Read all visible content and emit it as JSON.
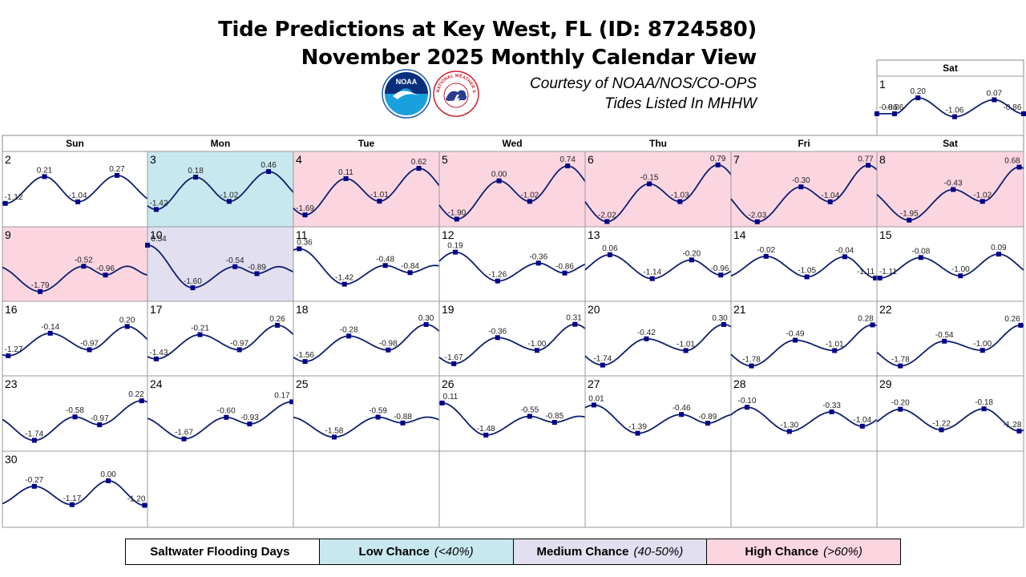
{
  "header": {
    "title_line1": "Tide Predictions at Key West, FL (ID: 8724580)",
    "title_line2": "November 2025 Monthly Calendar View",
    "courtesy": "Courtesy of NOAA/NOS/CO-OPS",
    "datum_note": "Tides Listed In MHHW",
    "noaa_logo_text": "NOAA",
    "nws_logo_text": "NATIONAL WEATHER SERVICE"
  },
  "colors": {
    "low": "#c8e8ef",
    "medium": "#e2dff0",
    "high": "#fbd6e1",
    "curve": "#0d1f6e",
    "marker": "#00008b",
    "grid": "#9a9a9a"
  },
  "weekdays": [
    "Sun",
    "Mon",
    "Tue",
    "Wed",
    "Thu",
    "Fri",
    "Sat"
  ],
  "legend": {
    "label": "Saltwater Flooding Days",
    "low_label": "Low Chance",
    "low_range": "(<40%)",
    "medium_label": "Medium Chance",
    "medium_range": "(40-50%)",
    "high_label": "High Chance",
    "high_range": "(>60%)"
  },
  "chart_data": {
    "type": "line",
    "month": "November 2025",
    "units": "ft MHHW",
    "ylim": [
      -2.2,
      0.9
    ],
    "days": [
      {
        "day": 1,
        "dow": "Sat",
        "flood": "none",
        "tides": [
          {
            "t": 0.0,
            "v": -0.86
          },
          {
            "t": 0.12,
            "v": -0.86
          },
          {
            "t": 0.28,
            "v": 0.2
          },
          {
            "t": 0.53,
            "v": -1.06
          },
          {
            "t": 0.8,
            "v": 0.07
          },
          {
            "t": 1.0,
            "v": -0.86
          }
        ]
      },
      {
        "day": 2,
        "dow": "Sun",
        "flood": "none",
        "tides": [
          {
            "t": 0.02,
            "v": -1.12
          },
          {
            "t": 0.29,
            "v": 0.21
          },
          {
            "t": 0.52,
            "v": -1.04
          },
          {
            "t": 0.79,
            "v": 0.27
          }
        ]
      },
      {
        "day": 3,
        "dow": "Mon",
        "flood": "low",
        "tides": [
          {
            "t": 0.06,
            "v": -1.42
          },
          {
            "t": 0.33,
            "v": 0.18
          },
          {
            "t": 0.56,
            "v": -1.02
          },
          {
            "t": 0.83,
            "v": 0.46
          }
        ]
      },
      {
        "day": 4,
        "dow": "Tue",
        "flood": "high",
        "tides": [
          {
            "t": 0.08,
            "v": -1.69
          },
          {
            "t": 0.36,
            "v": 0.11
          },
          {
            "t": 0.59,
            "v": -1.01
          },
          {
            "t": 0.86,
            "v": 0.62
          }
        ]
      },
      {
        "day": 5,
        "dow": "Wed",
        "flood": "high",
        "tides": [
          {
            "t": 0.12,
            "v": -1.9
          },
          {
            "t": 0.41,
            "v": -0.0
          },
          {
            "t": 0.62,
            "v": -1.02
          },
          {
            "t": 0.88,
            "v": 0.74
          }
        ]
      },
      {
        "day": 6,
        "dow": "Thu",
        "flood": "high",
        "tides": [
          {
            "t": 0.15,
            "v": -2.02
          },
          {
            "t": 0.44,
            "v": -0.15
          },
          {
            "t": 0.65,
            "v": -1.03
          },
          {
            "t": 0.91,
            "v": 0.79
          }
        ]
      },
      {
        "day": 7,
        "dow": "Fri",
        "flood": "high",
        "tides": [
          {
            "t": 0.18,
            "v": -2.03
          },
          {
            "t": 0.48,
            "v": -0.3
          },
          {
            "t": 0.68,
            "v": -1.04
          },
          {
            "t": 0.94,
            "v": 0.77
          }
        ]
      },
      {
        "day": 8,
        "dow": "Sat",
        "flood": "high",
        "tides": [
          {
            "t": 0.22,
            "v": -1.95
          },
          {
            "t": 0.52,
            "v": -0.43
          },
          {
            "t": 0.72,
            "v": -1.02
          },
          {
            "t": 0.97,
            "v": 0.68
          }
        ]
      },
      {
        "day": 9,
        "dow": "Sun",
        "flood": "high",
        "tides": [
          {
            "t": 0.26,
            "v": -1.79
          },
          {
            "t": 0.56,
            "v": -0.52
          },
          {
            "t": 0.71,
            "v": -0.96
          }
        ]
      },
      {
        "day": 10,
        "dow": "Mon",
        "flood": "medium",
        "tides": [
          {
            "t": 0.0,
            "v": 0.54
          },
          {
            "t": 0.31,
            "v": -1.6
          },
          {
            "t": 0.6,
            "v": -0.54
          },
          {
            "t": 0.75,
            "v": -0.89
          }
        ]
      },
      {
        "day": 11,
        "dow": "Tue",
        "flood": "none",
        "tides": [
          {
            "t": 0.04,
            "v": 0.36
          },
          {
            "t": 0.35,
            "v": -1.42
          },
          {
            "t": 0.63,
            "v": -0.48
          },
          {
            "t": 0.8,
            "v": -0.84
          }
        ]
      },
      {
        "day": 12,
        "dow": "Wed",
        "flood": "none",
        "tides": [
          {
            "t": 0.11,
            "v": 0.19
          },
          {
            "t": 0.4,
            "v": -1.26
          },
          {
            "t": 0.68,
            "v": -0.36
          },
          {
            "t": 0.86,
            "v": -0.86
          }
        ]
      },
      {
        "day": 13,
        "dow": "Thu",
        "flood": "none",
        "tides": [
          {
            "t": 0.17,
            "v": 0.06
          },
          {
            "t": 0.46,
            "v": -1.14
          },
          {
            "t": 0.73,
            "v": -0.2
          },
          {
            "t": 0.93,
            "v": -0.96
          }
        ]
      },
      {
        "day": 14,
        "dow": "Fri",
        "flood": "none",
        "tides": [
          {
            "t": 0.24,
            "v": -0.02
          },
          {
            "t": 0.52,
            "v": -1.05
          },
          {
            "t": 0.78,
            "v": -0.04
          },
          {
            "t": 0.99,
            "v": -1.11
          }
        ]
      },
      {
        "day": 15,
        "dow": "Sat",
        "flood": "none",
        "tides": [
          {
            "t": 0.02,
            "v": -1.11
          },
          {
            "t": 0.3,
            "v": -0.08
          },
          {
            "t": 0.57,
            "v": -1.0
          },
          {
            "t": 0.83,
            "v": 0.09
          }
        ]
      },
      {
        "day": 16,
        "dow": "Sun",
        "flood": "none",
        "tides": [
          {
            "t": 0.04,
            "v": -1.27
          },
          {
            "t": 0.33,
            "v": -0.14
          },
          {
            "t": 0.6,
            "v": -0.97
          },
          {
            "t": 0.86,
            "v": 0.2
          }
        ]
      },
      {
        "day": 17,
        "dow": "Mon",
        "flood": "none",
        "tides": [
          {
            "t": 0.06,
            "v": -1.43
          },
          {
            "t": 0.36,
            "v": -0.21
          },
          {
            "t": 0.63,
            "v": -0.97
          },
          {
            "t": 0.89,
            "v": 0.26
          }
        ]
      },
      {
        "day": 18,
        "dow": "Tue",
        "flood": "none",
        "tides": [
          {
            "t": 0.08,
            "v": -1.56
          },
          {
            "t": 0.38,
            "v": -0.28
          },
          {
            "t": 0.65,
            "v": -0.98
          },
          {
            "t": 0.91,
            "v": 0.3
          }
        ]
      },
      {
        "day": 19,
        "dow": "Wed",
        "flood": "none",
        "tides": [
          {
            "t": 0.1,
            "v": -1.67
          },
          {
            "t": 0.4,
            "v": -0.36
          },
          {
            "t": 0.67,
            "v": -1.0
          },
          {
            "t": 0.93,
            "v": 0.31
          }
        ]
      },
      {
        "day": 20,
        "dow": "Thu",
        "flood": "none",
        "tides": [
          {
            "t": 0.12,
            "v": -1.74
          },
          {
            "t": 0.42,
            "v": -0.42
          },
          {
            "t": 0.69,
            "v": -1.01
          },
          {
            "t": 0.95,
            "v": 0.3
          }
        ]
      },
      {
        "day": 21,
        "dow": "Fri",
        "flood": "none",
        "tides": [
          {
            "t": 0.14,
            "v": -1.78
          },
          {
            "t": 0.44,
            "v": -0.49
          },
          {
            "t": 0.71,
            "v": -1.01
          },
          {
            "t": 0.97,
            "v": 0.28
          }
        ]
      },
      {
        "day": 22,
        "dow": "Sat",
        "flood": "none",
        "tides": [
          {
            "t": 0.16,
            "v": -1.78
          },
          {
            "t": 0.46,
            "v": -0.54
          },
          {
            "t": 0.72,
            "v": -1.0
          },
          {
            "t": 0.98,
            "v": 0.26
          }
        ]
      },
      {
        "day": 23,
        "dow": "Sun",
        "flood": "none",
        "tides": [
          {
            "t": 0.22,
            "v": -1.74
          },
          {
            "t": 0.5,
            "v": -0.58
          },
          {
            "t": 0.67,
            "v": -0.97
          },
          {
            "t": 0.96,
            "v": 0.22
          }
        ]
      },
      {
        "day": 24,
        "dow": "Mon",
        "flood": "none",
        "tides": [
          {
            "t": 0.25,
            "v": -1.67
          },
          {
            "t": 0.54,
            "v": -0.6
          },
          {
            "t": 0.7,
            "v": -0.93
          },
          {
            "t": 0.99,
            "v": 0.17
          }
        ]
      },
      {
        "day": 25,
        "dow": "Tue",
        "flood": "none",
        "tides": [
          {
            "t": 0.28,
            "v": -1.58
          },
          {
            "t": 0.58,
            "v": -0.59
          },
          {
            "t": 0.75,
            "v": -0.88
          }
        ]
      },
      {
        "day": 26,
        "dow": "Wed",
        "flood": "none",
        "tides": [
          {
            "t": 0.02,
            "v": 0.11
          },
          {
            "t": 0.32,
            "v": -1.48
          },
          {
            "t": 0.62,
            "v": -0.55
          },
          {
            "t": 0.79,
            "v": -0.85
          }
        ]
      },
      {
        "day": 27,
        "dow": "Thu",
        "flood": "none",
        "tides": [
          {
            "t": 0.06,
            "v": 0.01
          },
          {
            "t": 0.36,
            "v": -1.39
          },
          {
            "t": 0.66,
            "v": -0.46
          },
          {
            "t": 0.84,
            "v": -0.89
          }
        ]
      },
      {
        "day": 28,
        "dow": "Fri",
        "flood": "none",
        "tides": [
          {
            "t": 0.11,
            "v": -0.1
          },
          {
            "t": 0.4,
            "v": -1.3
          },
          {
            "t": 0.69,
            "v": -0.33
          },
          {
            "t": 0.9,
            "v": -1.04
          }
        ]
      },
      {
        "day": 29,
        "dow": "Sat",
        "flood": "none",
        "tides": [
          {
            "t": 0.16,
            "v": -0.2
          },
          {
            "t": 0.44,
            "v": -1.22
          },
          {
            "t": 0.73,
            "v": -0.18
          },
          {
            "t": 0.97,
            "v": -1.28
          }
        ]
      },
      {
        "day": 30,
        "dow": "Sun",
        "flood": "none",
        "tides": [
          {
            "t": 0.22,
            "v": -0.27
          },
          {
            "t": 0.48,
            "v": -1.17
          },
          {
            "t": 0.73,
            "v": 0.0
          },
          {
            "t": 0.98,
            "v": -1.2
          }
        ]
      }
    ]
  }
}
